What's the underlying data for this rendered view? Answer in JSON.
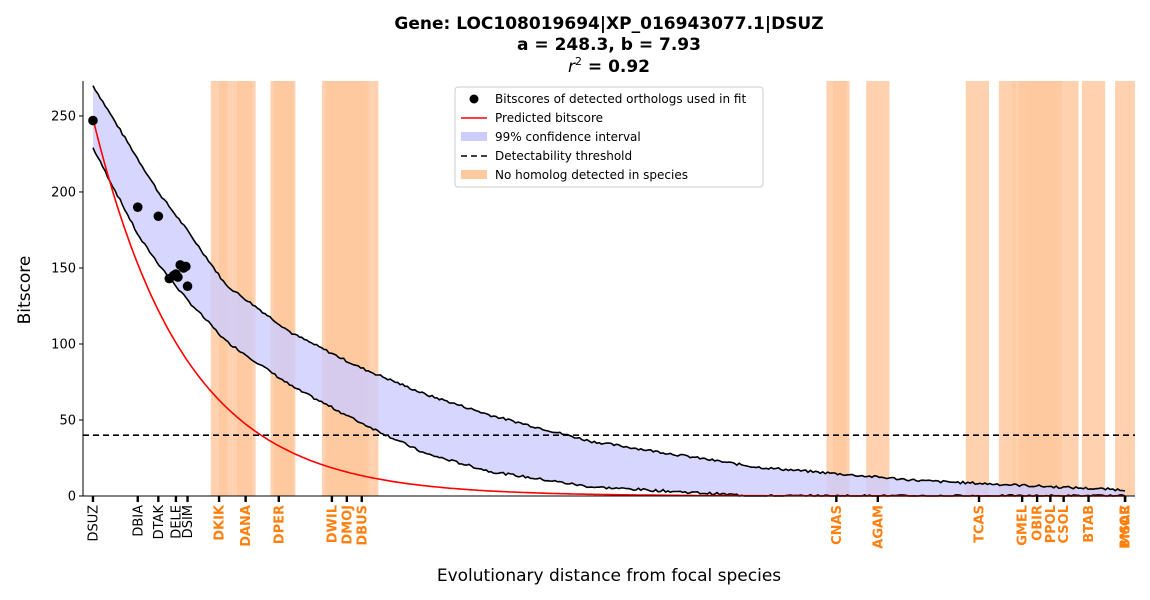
{
  "chart_data": {
    "type": "scatter",
    "title_lines": [
      "Gene: LOC108019694|XP_016943077.1|DSUZ",
      "a = 248.3, b = 7.93"
    ],
    "r2_label": {
      "prefix": "r",
      "sup": "2",
      "suffix": " = 0.92"
    },
    "xlabel": "Evolutionary distance from focal species",
    "ylabel": "Bitscore",
    "xlim": [
      -0.03,
      3.14
    ],
    "ylim": [
      0,
      273
    ],
    "yticks": [
      0,
      50,
      100,
      150,
      200,
      250
    ],
    "fit": {
      "a": 248.3,
      "b": 7.93
    },
    "detectability_threshold": 40,
    "ci_band": {
      "x": [
        0.0,
        0.14,
        0.2,
        0.28,
        0.4,
        0.6,
        0.8,
        1.0,
        1.2,
        1.5,
        2.0,
        2.5,
        3.0,
        3.11
      ],
      "upper": [
        270,
        220,
        199,
        176,
        139,
        107,
        85,
        67,
        53,
        36,
        19,
        10,
        5,
        4
      ],
      "lower": [
        229,
        170,
        152,
        130,
        102,
        72,
        49,
        28,
        16,
        6,
        0,
        0,
        0,
        0
      ]
    },
    "points": [
      {
        "x": 0.0,
        "y": 247
      },
      {
        "x": 0.135,
        "y": 190
      },
      {
        "x": 0.197,
        "y": 184
      },
      {
        "x": 0.23,
        "y": 143
      },
      {
        "x": 0.243,
        "y": 145
      },
      {
        "x": 0.25,
        "y": 146
      },
      {
        "x": 0.256,
        "y": 144
      },
      {
        "x": 0.263,
        "y": 152
      },
      {
        "x": 0.273,
        "y": 150
      },
      {
        "x": 0.28,
        "y": 151
      },
      {
        "x": 0.285,
        "y": 138
      }
    ],
    "species": [
      {
        "label": "DSUZ",
        "x": 0.0,
        "detected": true
      },
      {
        "label": "DBIA",
        "x": 0.135,
        "detected": true
      },
      {
        "label": "DTAK",
        "x": 0.197,
        "detected": true
      },
      {
        "label": "DELE",
        "x": 0.25,
        "detected": true
      },
      {
        "label": "DSIM",
        "x": 0.285,
        "detected": true
      },
      {
        "label": "DKIK",
        "x": 0.38,
        "detected": false
      },
      {
        "label": "DANA",
        "x": 0.46,
        "detected": false
      },
      {
        "label": "DPER",
        "x": 0.56,
        "detected": false
      },
      {
        "label": "DWIL",
        "x": 0.72,
        "detected": false
      },
      {
        "label": "DMOJ",
        "x": 0.765,
        "detected": false
      },
      {
        "label": "DBUS",
        "x": 0.81,
        "detected": false
      },
      {
        "label": "CNAS",
        "x": 2.24,
        "detected": false
      },
      {
        "label": "AGAM",
        "x": 2.365,
        "detected": false
      },
      {
        "label": "TCAS",
        "x": 2.67,
        "detected": false
      },
      {
        "label": "GMEL",
        "x": 2.8,
        "detected": false
      },
      {
        "label": "OBIR",
        "x": 2.845,
        "detected": false
      },
      {
        "label": "PPOL",
        "x": 2.885,
        "detected": false
      },
      {
        "label": "CSOL",
        "x": 2.925,
        "detected": false
      },
      {
        "label": "BTAB",
        "x": 3.0,
        "detected": false
      },
      {
        "label": "BMOR",
        "x": 3.11,
        "detected": false
      },
      {
        "label": "MSAC",
        "x": 3.11,
        "detected": false
      }
    ],
    "no_homolog_spans": [
      [
        0.355,
        0.405
      ],
      [
        0.38,
        0.42
      ],
      [
        0.42,
        0.48
      ],
      [
        0.435,
        0.49
      ],
      [
        0.535,
        0.6
      ],
      [
        0.545,
        0.59
      ],
      [
        0.555,
        0.605
      ],
      [
        0.56,
        0.61
      ],
      [
        0.69,
        0.82
      ],
      [
        0.7,
        0.79
      ],
      [
        0.71,
        0.76
      ],
      [
        0.73,
        0.8
      ],
      [
        0.75,
        0.83
      ],
      [
        0.77,
        0.86
      ],
      [
        2.21,
        2.28
      ],
      [
        2.23,
        2.27
      ],
      [
        2.33,
        2.4
      ],
      [
        2.63,
        2.7
      ],
      [
        2.73,
        2.78
      ],
      [
        2.77,
        2.83
      ],
      [
        2.79,
        2.9
      ],
      [
        2.81,
        2.88
      ],
      [
        2.83,
        2.92
      ],
      [
        2.86,
        2.97
      ],
      [
        2.98,
        3.05
      ],
      [
        3.08,
        3.15
      ],
      [
        3.16,
        3.22
      ]
    ],
    "legend": {
      "placement": "top-center",
      "entries": [
        "Bitscores of detected orthologs used in fit",
        "Predicted bitscore",
        "99% confidence interval",
        "Detectability threshold",
        "No homolog detected in species"
      ]
    },
    "colors": {
      "point": "#000000",
      "fit_line": "#ff0000",
      "ci_fill": "#ccccff",
      "threshold": "#000000",
      "no_homolog": "#ffc9a0",
      "undetected_label": "#ff7f0e",
      "detected_label": "#000000"
    }
  }
}
